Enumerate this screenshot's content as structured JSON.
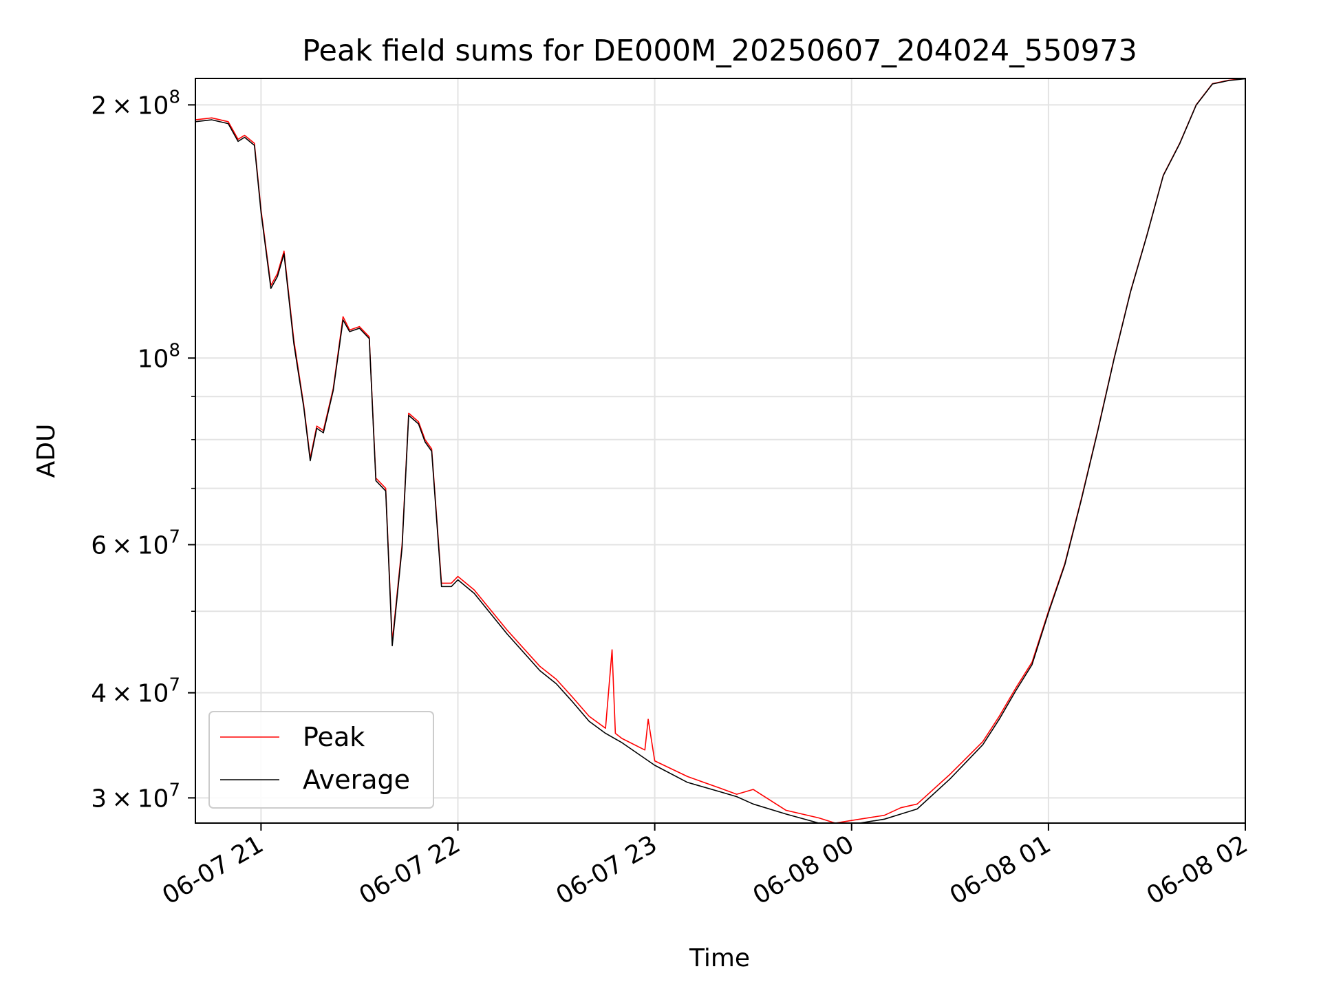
{
  "chart_data": {
    "type": "line",
    "title": "Peak field sums for DE000M_20250607_204024_550973",
    "xlabel": "Time",
    "ylabel": "ADU",
    "yscale": "log",
    "grid": true,
    "legend_position": "lower-left",
    "xlim": [
      "2025-06-07 20:40",
      "2025-06-08 02:00"
    ],
    "ylim": [
      28000000,
      215000000
    ],
    "x_tick_labels": [
      "06-07 21",
      "06-07 22",
      "06-07 23",
      "06-08 00",
      "06-08 01",
      "06-08 02"
    ],
    "x_tick_values": [
      "2025-06-07 21:00",
      "2025-06-07 22:00",
      "2025-06-07 23:00",
      "2025-06-08 00:00",
      "2025-06-08 01:00",
      "2025-06-08 02:00"
    ],
    "y_major_ticks": [
      {
        "value": 30000000,
        "coef": "3",
        "exp": "7"
      },
      {
        "value": 40000000,
        "coef": "4",
        "exp": "7"
      },
      {
        "value": 60000000,
        "coef": "6",
        "exp": "7"
      },
      {
        "value": 100000000,
        "coef": "",
        "exp": "8"
      },
      {
        "value": 200000000,
        "coef": "2",
        "exp": "8"
      }
    ],
    "y_minor_ticks": [
      50000000,
      70000000,
      80000000,
      90000000
    ],
    "series": [
      {
        "name": "Peak",
        "color": "#ff0000",
        "x": [
          "2025-06-07 20:40",
          "2025-06-07 20:45",
          "2025-06-07 20:50",
          "2025-06-07 20:53",
          "2025-06-07 20:55",
          "2025-06-07 20:58",
          "2025-06-07 21:00",
          "2025-06-07 21:03",
          "2025-06-07 21:05",
          "2025-06-07 21:07",
          "2025-06-07 21:10",
          "2025-06-07 21:13",
          "2025-06-07 21:15",
          "2025-06-07 21:17",
          "2025-06-07 21:19",
          "2025-06-07 21:22",
          "2025-06-07 21:25",
          "2025-06-07 21:27",
          "2025-06-07 21:30",
          "2025-06-07 21:33",
          "2025-06-07 21:35",
          "2025-06-07 21:38",
          "2025-06-07 21:40",
          "2025-06-07 21:43",
          "2025-06-07 21:45",
          "2025-06-07 21:48",
          "2025-06-07 21:50",
          "2025-06-07 21:52",
          "2025-06-07 21:55",
          "2025-06-07 21:58",
          "2025-06-07 22:00",
          "2025-06-07 22:05",
          "2025-06-07 22:15",
          "2025-06-07 22:25",
          "2025-06-07 22:30",
          "2025-06-07 22:35",
          "2025-06-07 22:40",
          "2025-06-07 22:45",
          "2025-06-07 22:47",
          "2025-06-07 22:48",
          "2025-06-07 22:50",
          "2025-06-07 22:57",
          "2025-06-07 22:58",
          "2025-06-07 23:00",
          "2025-06-07 23:10",
          "2025-06-07 23:20",
          "2025-06-07 23:25",
          "2025-06-07 23:30",
          "2025-06-07 23:40",
          "2025-06-07 23:50",
          "2025-06-07 23:55",
          "2025-06-08 00:00",
          "2025-06-08 00:10",
          "2025-06-08 00:15",
          "2025-06-08 00:20",
          "2025-06-08 00:30",
          "2025-06-08 00:40",
          "2025-06-08 00:45",
          "2025-06-08 00:50",
          "2025-06-08 00:55",
          "2025-06-08 01:00",
          "2025-06-08 01:05",
          "2025-06-08 01:10",
          "2025-06-08 01:15",
          "2025-06-08 01:20",
          "2025-06-08 01:25",
          "2025-06-08 01:30",
          "2025-06-08 01:35",
          "2025-06-08 01:40",
          "2025-06-08 01:45",
          "2025-06-08 01:50",
          "2025-06-08 01:55",
          "2025-06-08 02:00"
        ],
        "y": [
          192000000,
          193000000,
          191000000,
          182000000,
          184000000,
          180000000,
          150000000,
          122000000,
          126000000,
          134000000,
          105000000,
          88000000,
          76000000,
          83000000,
          82000000,
          92000000,
          112000000,
          108000000,
          109000000,
          106000000,
          72000000,
          70000000,
          46000000,
          60000000,
          86000000,
          84000000,
          80000000,
          78000000,
          54000000,
          54000000,
          55000000,
          53000000,
          47500000,
          43000000,
          41500000,
          39500000,
          37500000,
          36300000,
          45000000,
          35800000,
          35300000,
          34200000,
          37200000,
          33200000,
          31800000,
          30800000,
          30300000,
          30700000,
          29000000,
          28400000,
          28000000,
          28200000,
          28600000,
          29200000,
          29500000,
          32000000,
          35000000,
          37500000,
          40500000,
          43500000,
          50000000,
          57000000,
          68000000,
          82000000,
          100000000,
          120000000,
          140000000,
          165000000,
          180000000,
          200000000,
          212000000,
          214000000,
          215000000
        ]
      },
      {
        "name": "Average",
        "color": "#000000",
        "x": [
          "2025-06-07 20:40",
          "2025-06-07 20:45",
          "2025-06-07 20:50",
          "2025-06-07 20:53",
          "2025-06-07 20:55",
          "2025-06-07 20:58",
          "2025-06-07 21:00",
          "2025-06-07 21:03",
          "2025-06-07 21:05",
          "2025-06-07 21:07",
          "2025-06-07 21:10",
          "2025-06-07 21:13",
          "2025-06-07 21:15",
          "2025-06-07 21:17",
          "2025-06-07 21:19",
          "2025-06-07 21:22",
          "2025-06-07 21:25",
          "2025-06-07 21:27",
          "2025-06-07 21:30",
          "2025-06-07 21:33",
          "2025-06-07 21:35",
          "2025-06-07 21:38",
          "2025-06-07 21:40",
          "2025-06-07 21:43",
          "2025-06-07 21:45",
          "2025-06-07 21:48",
          "2025-06-07 21:50",
          "2025-06-07 21:52",
          "2025-06-07 21:55",
          "2025-06-07 21:58",
          "2025-06-07 22:00",
          "2025-06-07 22:05",
          "2025-06-07 22:15",
          "2025-06-07 22:25",
          "2025-06-07 22:30",
          "2025-06-07 22:35",
          "2025-06-07 22:40",
          "2025-06-07 22:45",
          "2025-06-07 22:50",
          "2025-06-07 23:00",
          "2025-06-07 23:10",
          "2025-06-07 23:20",
          "2025-06-07 23:25",
          "2025-06-07 23:30",
          "2025-06-07 23:40",
          "2025-06-07 23:50",
          "2025-06-07 23:55",
          "2025-06-08 00:00",
          "2025-06-08 00:10",
          "2025-06-08 00:15",
          "2025-06-08 00:20",
          "2025-06-08 00:30",
          "2025-06-08 00:40",
          "2025-06-08 00:45",
          "2025-06-08 00:50",
          "2025-06-08 00:55",
          "2025-06-08 01:00",
          "2025-06-08 01:05",
          "2025-06-08 01:10",
          "2025-06-08 01:15",
          "2025-06-08 01:20",
          "2025-06-08 01:25",
          "2025-06-08 01:30",
          "2025-06-08 01:35",
          "2025-06-08 01:40",
          "2025-06-08 01:45",
          "2025-06-08 01:50",
          "2025-06-08 01:55",
          "2025-06-08 02:00"
        ],
        "y": [
          191000000,
          192000000,
          190000000,
          181000000,
          183000000,
          179000000,
          149000000,
          121000000,
          125000000,
          133000000,
          104000000,
          87500000,
          75500000,
          82500000,
          81500000,
          91500000,
          111000000,
          107500000,
          108500000,
          105500000,
          71500000,
          69500000,
          45500000,
          59500000,
          85500000,
          83500000,
          79500000,
          77500000,
          53500000,
          53500000,
          54500000,
          52500000,
          47000000,
          42500000,
          41000000,
          39000000,
          37000000,
          35800000,
          34900000,
          32800000,
          31300000,
          30500000,
          30100000,
          29500000,
          28700000,
          28000000,
          27700000,
          27900000,
          28300000,
          28700000,
          29100000,
          31600000,
          34700000,
          37200000,
          40200000,
          43200000,
          49800000,
          56800000,
          67800000,
          81800000,
          99800000,
          119800000,
          139800000,
          164800000,
          179800000,
          199800000,
          211800000,
          213800000,
          214800000
        ]
      }
    ]
  }
}
